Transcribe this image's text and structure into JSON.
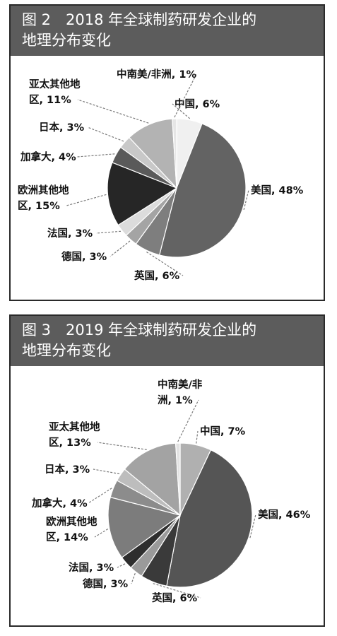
{
  "charts": [
    {
      "title_line1": "图 2　2018 年全球制药研发企业的",
      "title_line2": "地理分布变化"
    },
    {
      "title_line1": "图 3　2019 年全球制药研发企业的",
      "title_line2": "地理分布变化"
    }
  ],
  "colors": {
    "header_bg": "#5c5c5c",
    "border": "#2a2a2a"
  },
  "chart_data": [
    {
      "type": "pie",
      "title": "图 2　2018 年全球制药研发企业的地理分布变化",
      "slices": [
        {
          "label": "中国",
          "value": 6,
          "color": "#f0f0f0",
          "text_lines": [
            "中国, 6%"
          ]
        },
        {
          "label": "美国",
          "value": 48,
          "color": "#636363",
          "text_lines": [
            "美国, 48%"
          ]
        },
        {
          "label": "英国",
          "value": 6,
          "color": "#7e7e7e",
          "text_lines": [
            "英国, 6%"
          ]
        },
        {
          "label": "德国",
          "value": 3,
          "color": "#a4a4a4",
          "text_lines": [
            "德国, 3%"
          ]
        },
        {
          "label": "法国",
          "value": 3,
          "color": "#dcdcdc",
          "text_lines": [
            "法国, 3%"
          ]
        },
        {
          "label": "欧洲其他地区",
          "value": 15,
          "color": "#262626",
          "text_lines": [
            "欧洲其他地",
            "区, 15%"
          ]
        },
        {
          "label": "加拿大",
          "value": 4,
          "color": "#5a5a5a",
          "text_lines": [
            "加拿大, 4%"
          ]
        },
        {
          "label": "日本",
          "value": 3,
          "color": "#c8c8c8",
          "text_lines": [
            "日本, 3%"
          ]
        },
        {
          "label": "亚太其他地区",
          "value": 11,
          "color": "#b3b3b3",
          "text_lines": [
            "亚太其他地",
            "区, 11%"
          ]
        },
        {
          "label": "中南美/非洲",
          "value": 1,
          "color": "#e6e6e6",
          "text_lines": [
            "中南美/非洲, 1%"
          ]
        }
      ]
    },
    {
      "type": "pie",
      "title": "图 3　2019 年全球制药研发企业的地理分布变化",
      "slices": [
        {
          "label": "中国",
          "value": 7,
          "color": "#b0b0b0",
          "text_lines": [
            "中国, 7%"
          ]
        },
        {
          "label": "美国",
          "value": 46,
          "color": "#555555",
          "text_lines": [
            "美国, 46%"
          ]
        },
        {
          "label": "英国",
          "value": 6,
          "color": "#3a3a3a",
          "text_lines": [
            "英国, 6%"
          ]
        },
        {
          "label": "德国",
          "value": 3,
          "color": "#9a9a9a",
          "text_lines": [
            "德国, 3%"
          ]
        },
        {
          "label": "法国",
          "value": 3,
          "color": "#2e2e2e",
          "text_lines": [
            "法国, 3%"
          ]
        },
        {
          "label": "欧洲其他地区",
          "value": 14,
          "color": "#7c7c7c",
          "text_lines": [
            "欧洲其他地",
            "区, 14%"
          ]
        },
        {
          "label": "加拿大",
          "value": 4,
          "color": "#8c8c8c",
          "text_lines": [
            "加拿大, 4%"
          ]
        },
        {
          "label": "日本",
          "value": 3,
          "color": "#bdbdbd",
          "text_lines": [
            "日本, 3%"
          ]
        },
        {
          "label": "亚太其他地区",
          "value": 13,
          "color": "#a3a3a3",
          "text_lines": [
            "亚太其他地",
            "区, 13%"
          ]
        },
        {
          "label": "中南美/非洲",
          "value": 1,
          "color": "#e2e2e2",
          "text_lines": [
            "中南美/非",
            "洲, 1%"
          ]
        }
      ]
    }
  ]
}
